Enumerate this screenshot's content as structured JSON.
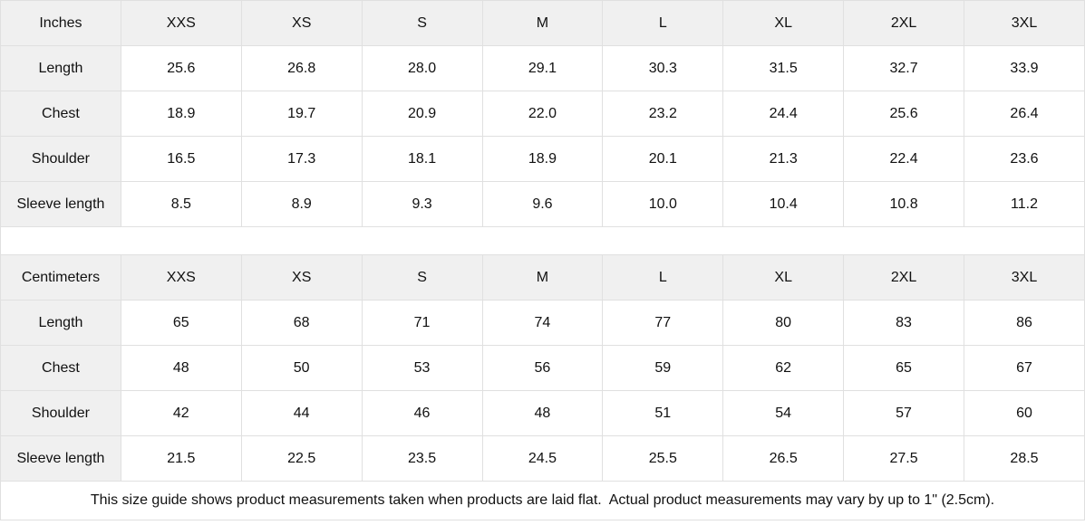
{
  "colors": {
    "header_bg": "#f0f0f0",
    "border": "#e0e0e0",
    "text": "#111111",
    "cell_bg": "#ffffff"
  },
  "tables": [
    {
      "unit_label": "Inches",
      "size_headers": [
        "XXS",
        "XS",
        "S",
        "M",
        "L",
        "XL",
        "2XL",
        "3XL"
      ],
      "rows": [
        {
          "label": "Length",
          "values": [
            "25.6",
            "26.8",
            "28.0",
            "29.1",
            "30.3",
            "31.5",
            "32.7",
            "33.9"
          ]
        },
        {
          "label": "Chest",
          "values": [
            "18.9",
            "19.7",
            "20.9",
            "22.0",
            "23.2",
            "24.4",
            "25.6",
            "26.4"
          ]
        },
        {
          "label": "Shoulder",
          "values": [
            "16.5",
            "17.3",
            "18.1",
            "18.9",
            "20.1",
            "21.3",
            "22.4",
            "23.6"
          ]
        },
        {
          "label": "Sleeve length",
          "values": [
            "8.5",
            "8.9",
            "9.3",
            "9.6",
            "10.0",
            "10.4",
            "10.8",
            "11.2"
          ]
        }
      ]
    },
    {
      "unit_label": "Centimeters",
      "size_headers": [
        "XXS",
        "XS",
        "S",
        "M",
        "L",
        "XL",
        "2XL",
        "3XL"
      ],
      "rows": [
        {
          "label": "Length",
          "values": [
            "65",
            "68",
            "71",
            "74",
            "77",
            "80",
            "83",
            "86"
          ]
        },
        {
          "label": "Chest",
          "values": [
            "48",
            "50",
            "53",
            "56",
            "59",
            "62",
            "65",
            "67"
          ]
        },
        {
          "label": "Shoulder",
          "values": [
            "42",
            "44",
            "46",
            "48",
            "51",
            "54",
            "57",
            "60"
          ]
        },
        {
          "label": "Sleeve length",
          "values": [
            "21.5",
            "22.5",
            "23.5",
            "24.5",
            "25.5",
            "26.5",
            "27.5",
            "28.5"
          ]
        }
      ]
    }
  ],
  "footer": {
    "note": "This size guide shows product measurements taken when products are laid flat.  Actual product measurements may vary by up to 1\" (2.5cm)."
  }
}
